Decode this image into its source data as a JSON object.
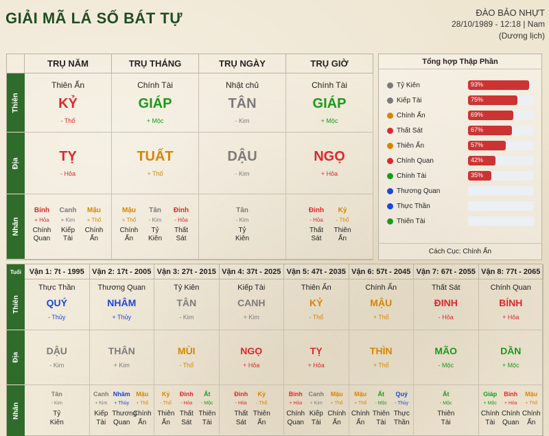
{
  "header": {
    "title": "GIẢI MÃ LÁ SỐ BÁT TỰ",
    "name": "ĐÀO BẢO NHỰT",
    "info": "28/10/1989 - 12:18 | Nam",
    "calendar": "(Dương lịch)"
  },
  "pillars": {
    "row_labels": {
      "stem": "Thiên",
      "branch": "Địa",
      "hidden": "Nhân"
    },
    "columns": [
      {
        "header": "TRỤ NĂM",
        "god": "Thiên Ấn",
        "stem": "KỶ",
        "stem_color": "red",
        "stem_elem": "- Thổ",
        "branch": "TỴ",
        "branch_color": "red",
        "branch_elem": "- Hỏa",
        "hidden": [
          {
            "stem": "Bính",
            "color": "red",
            "elem": "+ Hỏa",
            "god1": "Chính",
            "god2": "Quan"
          },
          {
            "stem": "Canh",
            "color": "gray",
            "elem": "+ Kim",
            "god1": "Kiếp",
            "god2": "Tài"
          },
          {
            "stem": "Mậu",
            "color": "orange",
            "elem": "+ Thổ",
            "god1": "Chính",
            "god2": "Ấn"
          }
        ]
      },
      {
        "header": "TRỤ THÁNG",
        "god": "Chính Tài",
        "stem": "GIÁP",
        "stem_color": "green",
        "stem_elem": "+ Mộc",
        "branch": "TUẤT",
        "branch_color": "orange",
        "branch_elem": "+ Thổ",
        "hidden": [
          {
            "stem": "Mậu",
            "color": "orange",
            "elem": "+ Thổ",
            "god1": "Chính",
            "god2": "Ấn"
          },
          {
            "stem": "Tân",
            "color": "gray",
            "elem": "- Kim",
            "god1": "Tỷ",
            "god2": "Kiên"
          },
          {
            "stem": "Đinh",
            "color": "red",
            "elem": "- Hỏa",
            "god1": "Thất",
            "god2": "Sát"
          }
        ]
      },
      {
        "header": "TRỤ NGÀY",
        "god": "Nhật chủ",
        "stem": "TÂN",
        "stem_color": "gray",
        "stem_elem": "- Kim",
        "branch": "DẬU",
        "branch_color": "gray",
        "branch_elem": "- Kim",
        "hidden": [
          {
            "stem": "Tân",
            "color": "gray",
            "elem": "- Kim",
            "god1": "Tỷ",
            "god2": "Kiên"
          }
        ]
      },
      {
        "header": "TRỤ GIỜ",
        "god": "Chính Tài",
        "stem": "GIÁP",
        "stem_color": "green",
        "stem_elem": "+ Mộc",
        "branch": "NGỌ",
        "branch_color": "red",
        "branch_elem": "+ Hỏa",
        "hidden": [
          {
            "stem": "Đinh",
            "color": "red",
            "elem": "- Hỏa",
            "god1": "Thất",
            "god2": "Sát"
          },
          {
            "stem": "Kỷ",
            "color": "orange",
            "elem": "- Thổ",
            "god1": "Thiên",
            "god2": "Ấn"
          }
        ]
      }
    ]
  },
  "summary": {
    "title": "Tổng hợp Thập Phần",
    "items": [
      {
        "name": "Tỷ Kiên",
        "dot": "#7a7a7a",
        "pct": 93,
        "label": "93%"
      },
      {
        "name": "Kiếp Tài",
        "dot": "#7a7a7a",
        "pct": 75,
        "label": "75%"
      },
      {
        "name": "Chính Ấn",
        "dot": "#d88400",
        "pct": 69,
        "label": "69%"
      },
      {
        "name": "Thất Sát",
        "dot": "#e0262b",
        "pct": 67,
        "label": "67%"
      },
      {
        "name": "Thiên Ấn",
        "dot": "#d88400",
        "pct": 57,
        "label": "57%"
      },
      {
        "name": "Chính Quan",
        "dot": "#e0262b",
        "pct": 42,
        "label": "42%"
      },
      {
        "name": "Chính Tài",
        "dot": "#199a19",
        "pct": 35,
        "label": "35%"
      },
      {
        "name": "Thương Quan",
        "dot": "#1a45e0",
        "pct": 0,
        "label": ""
      },
      {
        "name": "Thực Thần",
        "dot": "#1a45e0",
        "pct": 0,
        "label": ""
      },
      {
        "name": "Thiên Tài",
        "dot": "#199a19",
        "pct": 0,
        "label": ""
      }
    ],
    "footer": "Cách Cục: Chính Ấn"
  },
  "luck": {
    "corner": "Tuổi",
    "row_labels": {
      "stem": "Thiên",
      "branch": "Địa",
      "hidden": "Nhân"
    },
    "columns": [
      {
        "header": "Vận 1: 7t - 1995",
        "god": "Thực Thần",
        "stem": "QUÝ",
        "stem_color": "blue",
        "stem_elem": "- Thủy",
        "branch": "DẬU",
        "branch_color": "gray",
        "branch_elem": "- Kim",
        "hidden": [
          {
            "stem": "Tân",
            "color": "gray",
            "elem": "- Kim",
            "god1": "Tỷ",
            "god2": "Kiên"
          }
        ]
      },
      {
        "header": "Vận 2: 17t - 2005",
        "god": "Thương Quan",
        "stem": "NHÂM",
        "stem_color": "blue",
        "stem_elem": "+ Thủy",
        "branch": "THÂN",
        "branch_color": "gray",
        "branch_elem": "+ Kim",
        "hidden": [
          {
            "stem": "Canh",
            "color": "gray",
            "elem": "+ Kim",
            "god1": "Kiếp",
            "god2": "Tài"
          },
          {
            "stem": "Nhâm",
            "color": "blue",
            "elem": "+ Thủy",
            "god1": "Thương",
            "god2": "Quan"
          },
          {
            "stem": "Mậu",
            "color": "orange",
            "elem": "+ Thổ",
            "god1": "Chính",
            "god2": "Ấn"
          }
        ]
      },
      {
        "header": "Vận 3: 27t - 2015",
        "god": "Tỷ Kiên",
        "stem": "TÂN",
        "stem_color": "gray",
        "stem_elem": "- Kim",
        "branch": "MÙI",
        "branch_color": "orange",
        "branch_elem": "- Thổ",
        "hidden": [
          {
            "stem": "Kỷ",
            "color": "orange",
            "elem": "- Thổ",
            "god1": "Thiên",
            "god2": "Ấn"
          },
          {
            "stem": "Đinh",
            "color": "red",
            "elem": "- Hỏa",
            "god1": "Thất",
            "god2": "Sát"
          },
          {
            "stem": "Ất",
            "color": "green",
            "elem": "- Mộc",
            "god1": "Thiên",
            "god2": "Tài"
          }
        ]
      },
      {
        "header": "Vận 4: 37t - 2025",
        "god": "Kiếp Tài",
        "stem": "CANH",
        "stem_color": "gray",
        "stem_elem": "+ Kim",
        "branch": "NGỌ",
        "branch_color": "red",
        "branch_elem": "+ Hỏa",
        "hidden": [
          {
            "stem": "Đinh",
            "color": "red",
            "elem": "- Hỏa",
            "god1": "Thất",
            "god2": "Sát"
          },
          {
            "stem": "Kỷ",
            "color": "orange",
            "elem": "- Thổ",
            "god1": "Thiên",
            "god2": "Ấn"
          }
        ]
      },
      {
        "header": "Vận 5: 47t - 2035",
        "god": "Thiên Ấn",
        "stem": "KỶ",
        "stem_color": "orange",
        "stem_elem": "- Thổ",
        "branch": "TỴ",
        "branch_color": "red",
        "branch_elem": "+ Hỏa",
        "hidden": [
          {
            "stem": "Bính",
            "color": "red",
            "elem": "+ Hỏa",
            "god1": "Chính",
            "god2": "Quan"
          },
          {
            "stem": "Canh",
            "color": "gray",
            "elem": "+ Kim",
            "god1": "Kiếp",
            "god2": "Tài"
          },
          {
            "stem": "Mậu",
            "color": "orange",
            "elem": "+ Thổ",
            "god1": "Chính",
            "god2": "Ấn"
          }
        ]
      },
      {
        "header": "Vận 6: 57t - 2045",
        "god": "Chính Ấn",
        "stem": "MẬU",
        "stem_color": "orange",
        "stem_elem": "+ Thổ",
        "branch": "THÌN",
        "branch_color": "orange",
        "branch_elem": "+ Thổ",
        "hidden": [
          {
            "stem": "Mậu",
            "color": "orange",
            "elem": "+ Thổ",
            "god1": "Chính",
            "god2": "Ấn"
          },
          {
            "stem": "Ất",
            "color": "green",
            "elem": "- Mộc",
            "god1": "Thiên",
            "god2": "Tài"
          },
          {
            "stem": "Quý",
            "color": "blue",
            "elem": "- Thủy",
            "god1": "Thực",
            "god2": "Thần"
          }
        ]
      },
      {
        "header": "Vận 7: 67t - 2055",
        "god": "Thất Sát",
        "stem": "ĐINH",
        "stem_color": "red",
        "stem_elem": "- Hỏa",
        "branch": "MÃO",
        "branch_color": "green",
        "branch_elem": "- Mộc",
        "hidden": [
          {
            "stem": "Ất",
            "color": "green",
            "elem": "- Mộc",
            "god1": "Thiên",
            "god2": "Tài"
          }
        ]
      },
      {
        "header": "Vận 8: 77t - 2065",
        "god": "Chính Quan",
        "stem": "BÍNH",
        "stem_color": "red",
        "stem_elem": "+ Hỏa",
        "branch": "DẦN",
        "branch_color": "green",
        "branch_elem": "+ Mộc",
        "hidden": [
          {
            "stem": "Giáp",
            "color": "green",
            "elem": "+ Mộc",
            "god1": "Chính",
            "god2": "Tài"
          },
          {
            "stem": "Bính",
            "color": "red",
            "elem": "+ Hỏa",
            "god1": "Chính",
            "god2": "Quan"
          },
          {
            "stem": "Mậu",
            "color": "orange",
            "elem": "+ Thổ",
            "god1": "Chính",
            "god2": "Ấn"
          }
        ]
      }
    ]
  }
}
